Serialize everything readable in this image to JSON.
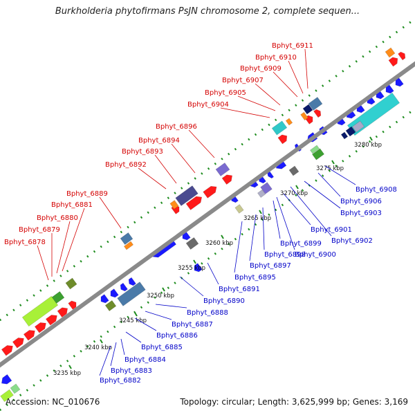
{
  "title": "Burkholderia phytofirmans PsJN chromosome 2, complete sequen...",
  "accession": "Accession: NC_010676",
  "summary": "Topology: circular; Length: 3,625,999 bp; Genes: 3,169",
  "colors": {
    "backbone": "#8a8a8a",
    "top_label": "#d40000",
    "bottom_label": "#0000c8",
    "dots": "#1e8c1e"
  },
  "ticks": [
    "3235 kbp",
    "3240 kbp",
    "3245 kbp",
    "3250 kbp",
    "3255 kbp",
    "3260 kbp",
    "3265 kbp",
    "3270 kbp",
    "3275 kbp",
    "3280 kbp"
  ],
  "top_labels": [
    "Bphyt_6878",
    "Bphyt_6879",
    "Bphyt_6880",
    "Bphyt_6881",
    "Bphyt_6889",
    "Bphyt_6892",
    "Bphyt_6893",
    "Bphyt_6894",
    "Bphyt_6896",
    "Bphyt_6904",
    "Bphyt_6905",
    "Bphyt_6907",
    "Bphyt_6909",
    "Bphyt_6910",
    "Bphyt_6911"
  ],
  "bottom_labels": [
    "Bphyt_6882",
    "Bphyt_6883",
    "Bphyt_6884",
    "Bphyt_6885",
    "Bphyt_6886",
    "Bphyt_6887",
    "Bphyt_6888",
    "Bphyt_6890",
    "Bphyt_6891",
    "Bphyt_6895",
    "Bphyt_6897",
    "Bphyt_6898",
    "Bphyt_6899",
    "Bphyt_6900",
    "Bphyt_6901",
    "Bphyt_6902",
    "Bphyt_6903",
    "Bphyt_6906",
    "Bphyt_6908"
  ]
}
